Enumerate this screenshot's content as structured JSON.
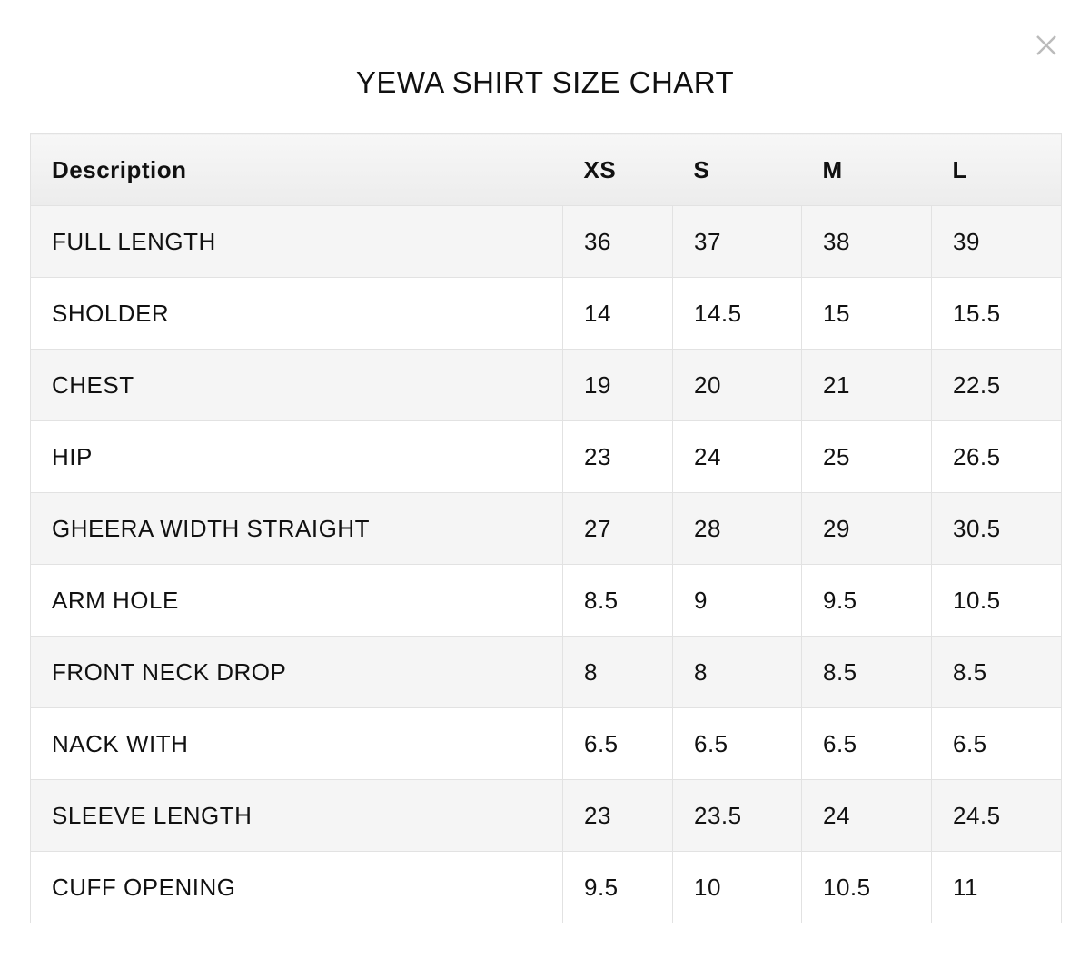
{
  "title": "YEWA SHIRT SIZE CHART",
  "table": {
    "header": [
      "Description",
      "XS",
      "S",
      "M",
      "L"
    ],
    "rows": [
      [
        "FULL LENGTH",
        "36",
        "37",
        "38",
        "39"
      ],
      [
        "SHOLDER",
        "14",
        "14.5",
        "15",
        "15.5"
      ],
      [
        "CHEST",
        "19",
        "20",
        "21",
        "22.5"
      ],
      [
        "HIP",
        "23",
        "24",
        "25",
        "26.5"
      ],
      [
        "GHEERA WIDTH STRAIGHT",
        "27",
        "28",
        "29",
        "30.5"
      ],
      [
        "ARM HOLE",
        "8.5",
        "9",
        "9.5",
        "10.5"
      ],
      [
        "FRONT NECK DROP",
        "8",
        "8",
        "8.5",
        "8.5"
      ],
      [
        "NACK WITH",
        "6.5",
        "6.5",
        "6.5",
        "6.5"
      ],
      [
        "SLEEVE LENGTH",
        "23",
        "23.5",
        "24",
        "24.5"
      ],
      [
        "CUFF OPENING",
        "9.5",
        "10",
        "10.5",
        "11"
      ]
    ]
  }
}
